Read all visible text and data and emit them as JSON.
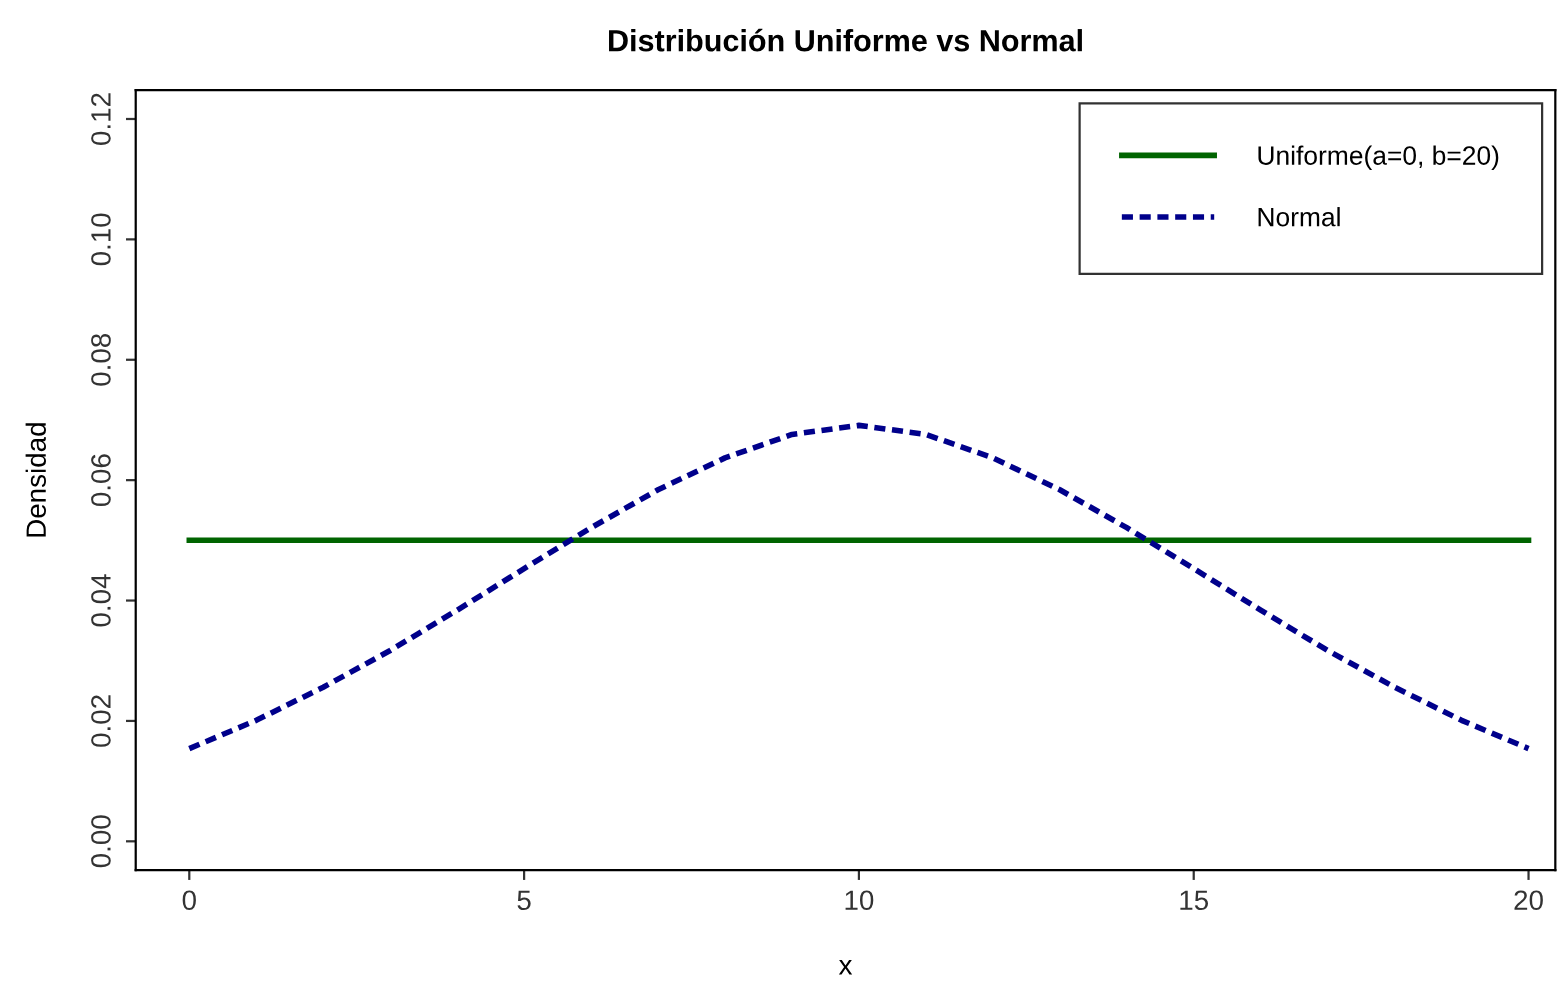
{
  "chart_data": {
    "type": "line",
    "title": "Distribución Uniforme vs Normal",
    "xlabel": "x",
    "ylabel": "Densidad",
    "x": [
      0,
      1,
      2,
      3,
      4,
      5,
      6,
      7,
      8,
      9,
      10,
      11,
      12,
      13,
      14,
      15,
      16,
      17,
      18,
      19,
      20
    ],
    "series": [
      {
        "name": "Uniforme(a=0, b=20)",
        "color": "#006400",
        "line_style": "solid",
        "values": [
          0.05,
          0.05,
          0.05,
          0.05,
          0.05,
          0.05,
          0.05,
          0.05,
          0.05,
          0.05,
          0.05,
          0.05,
          0.05,
          0.05,
          0.05,
          0.05,
          0.05,
          0.05,
          0.05,
          0.05,
          0.05
        ]
      },
      {
        "name": "Normal",
        "color": "#00008b",
        "line_style": "dashed",
        "values": [
          0.0154,
          0.0201,
          0.0256,
          0.0317,
          0.0384,
          0.0453,
          0.0521,
          0.0584,
          0.0637,
          0.0676,
          0.0691,
          0.0676,
          0.0637,
          0.0584,
          0.0521,
          0.0453,
          0.0384,
          0.0317,
          0.0256,
          0.0201,
          0.0154
        ]
      }
    ],
    "xlim": [
      -0.8,
      20.4
    ],
    "ylim": [
      -0.0048,
      0.1248
    ],
    "xticks": [
      0,
      5,
      10,
      15,
      20
    ],
    "yticks": [
      {
        "value": 0,
        "label": "0.00"
      },
      {
        "value": 0.02,
        "label": "0.02"
      },
      {
        "value": 0.04,
        "label": "0.04"
      },
      {
        "value": 0.06,
        "label": "0.06"
      },
      {
        "value": 0.08,
        "label": "0.08"
      },
      {
        "value": 0.1,
        "label": "0.10"
      },
      {
        "value": 0.12,
        "label": "0.12"
      }
    ],
    "legend": "top right",
    "grid": false
  }
}
